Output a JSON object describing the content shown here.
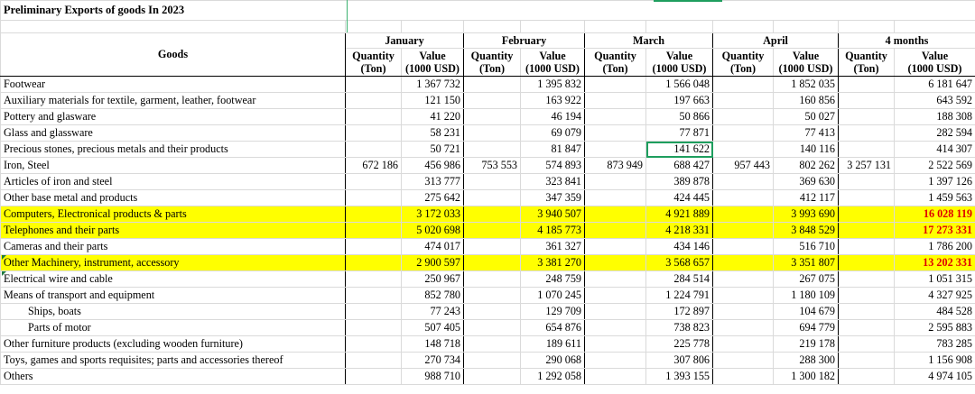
{
  "title": "Preliminary Exports of goods In 2023",
  "header": {
    "goods": "Goods",
    "months": [
      "January",
      "February",
      "March",
      "April",
      "4 months"
    ],
    "quantity": [
      "Quantity",
      "(Ton)"
    ],
    "value": [
      "Value",
      "(1000 USD)"
    ]
  },
  "rows": [
    {
      "name": "Footwear",
      "q": [
        "",
        "",
        "",
        "",
        ""
      ],
      "v": [
        "1 367 732",
        "1 395 832",
        "1 566 048",
        "1 852 035",
        "6 181 647"
      ]
    },
    {
      "name": "Auxiliary materials for textile, garment, leather, footwear",
      "q": [
        "",
        "",
        "",
        "",
        ""
      ],
      "v": [
        "121 150",
        "163 922",
        "197 663",
        "160 856",
        "643 592"
      ]
    },
    {
      "name": "Pottery and glasware",
      "q": [
        "",
        "",
        "",
        "",
        ""
      ],
      "v": [
        "41 220",
        "46 194",
        "50 866",
        "50 027",
        "188 308"
      ]
    },
    {
      "name": "Glass and glassware",
      "q": [
        "",
        "",
        "",
        "",
        ""
      ],
      "v": [
        "58 231",
        "69 079",
        "77 871",
        "77 413",
        "282 594"
      ]
    },
    {
      "name": "Precious stones, precious metals and their products",
      "q": [
        "",
        "",
        "",
        "",
        ""
      ],
      "v": [
        "50 721",
        "81 847",
        "141 622",
        "140 116",
        "414 307"
      ]
    },
    {
      "name": "Iron, Steel",
      "q": [
        "672 186",
        "753 553",
        "873 949",
        "957 443",
        "3 257 131"
      ],
      "v": [
        "456 986",
        "574 893",
        "688 427",
        "802 262",
        "2 522 569"
      ]
    },
    {
      "name": "Articles of iron and steel",
      "q": [
        "",
        "",
        "",
        "",
        ""
      ],
      "v": [
        "313 777",
        "323 841",
        "389 878",
        "369 630",
        "1 397 126"
      ]
    },
    {
      "name": "Other base metal and products",
      "q": [
        "",
        "",
        "",
        "",
        ""
      ],
      "v": [
        "275 642",
        "347 359",
        "424 445",
        "412 117",
        "1 459 563"
      ]
    },
    {
      "name": "Computers, Electronical products & parts",
      "q": [
        "",
        "",
        "",
        "",
        ""
      ],
      "v": [
        "3 172 033",
        "3 940 507",
        "4 921 889",
        "3 993 690",
        "16 028 119"
      ]
    },
    {
      "name": "Telephones and their parts",
      "q": [
        "",
        "",
        "",
        "",
        ""
      ],
      "v": [
        "5 020 698",
        "4 185 773",
        "4 218 331",
        "3 848 529",
        "17 273 331"
      ]
    },
    {
      "name": "Cameras and their parts",
      "q": [
        "",
        "",
        "",
        "",
        ""
      ],
      "v": [
        "474 017",
        "361 327",
        "434 146",
        "516 710",
        "1 786 200"
      ]
    },
    {
      "name": "Other Machinery, instrument, accessory",
      "q": [
        "",
        "",
        "",
        "",
        ""
      ],
      "v": [
        "2 900 597",
        "3 381 270",
        "3 568 657",
        "3 351 807",
        "13 202 331"
      ]
    },
    {
      "name": "Electrical wire and cable",
      "q": [
        "",
        "",
        "",
        "",
        ""
      ],
      "v": [
        "250 967",
        "248 759",
        "284 514",
        "267 075",
        "1 051 315"
      ]
    },
    {
      "name": "Means of transport and equipment",
      "q": [
        "",
        "",
        "",
        "",
        ""
      ],
      "v": [
        "852 780",
        "1 070 245",
        "1 224 791",
        "1 180 109",
        "4 327 925"
      ]
    },
    {
      "name": "Ships, boats",
      "q": [
        "",
        "",
        "",
        "",
        ""
      ],
      "v": [
        "77 243",
        "129 709",
        "172 897",
        "104 679",
        "484 528"
      ]
    },
    {
      "name": "Parts of motor",
      "q": [
        "",
        "",
        "",
        "",
        ""
      ],
      "v": [
        "507 405",
        "654 876",
        "738 823",
        "694 779",
        "2 595 883"
      ]
    },
    {
      "name": "Other furniture products (excluding wooden furniture)",
      "q": [
        "",
        "",
        "",
        "",
        ""
      ],
      "v": [
        "148 718",
        "189 611",
        "225 778",
        "219 178",
        "783 285"
      ]
    },
    {
      "name": "Toys, games and sports requisites; parts and accessories thereof",
      "q": [
        "",
        "",
        "",
        "",
        ""
      ],
      "v": [
        "270 734",
        "290 068",
        "307 806",
        "288 300",
        "1 156 908"
      ]
    },
    {
      "name": "Others",
      "q": [
        "",
        "",
        "",
        "",
        ""
      ],
      "v": [
        "988 710",
        "1 292 058",
        "1 393 155",
        "1 300 182",
        "4 974 105"
      ]
    }
  ],
  "highlight_color": "#ffff00",
  "highlight_total_color": "#e00000",
  "selection_color": "#1e9e5e"
}
